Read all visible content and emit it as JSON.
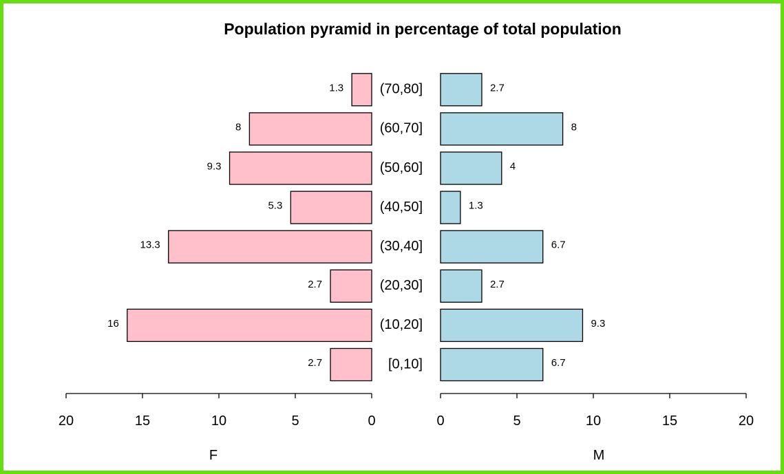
{
  "colors": {
    "frame": "#66dd11",
    "female_fill": "#ffc0cb",
    "male_fill": "#add8e6",
    "outline": "#000000"
  },
  "chart_data": {
    "type": "bar",
    "orientation": "horizontal",
    "layout": "population-pyramid",
    "title": "Population pyramid in percentage of total population",
    "categories": [
      "[0,10]",
      "(10,20]",
      "(20,30]",
      "(30,40]",
      "(40,50]",
      "(50,60]",
      "(60,70]",
      "(70,80]"
    ],
    "series": [
      {
        "name": "F",
        "side": "left",
        "values": [
          2.7,
          16,
          2.7,
          13.3,
          5.3,
          9.3,
          8,
          1.3
        ],
        "labels": [
          "2.7",
          "16",
          "2.7",
          "13.3",
          "5.3",
          "9.3",
          "8",
          "1.3"
        ]
      },
      {
        "name": "M",
        "side": "right",
        "values": [
          6.7,
          9.3,
          2.7,
          6.7,
          1.3,
          4,
          8,
          2.7
        ],
        "labels": [
          "6.7",
          "9.3",
          "2.7",
          "6.7",
          "1.3",
          "4",
          "8",
          "2.7"
        ]
      }
    ],
    "xlim": [
      0,
      20
    ],
    "xticks": [
      0,
      5,
      10,
      15,
      20
    ],
    "xlabel_left": "F",
    "xlabel_right": "M",
    "grid": false,
    "legend": "none"
  }
}
